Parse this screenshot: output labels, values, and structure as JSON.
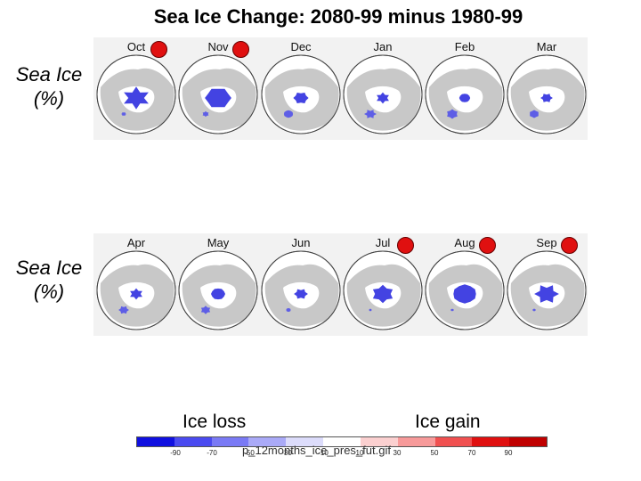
{
  "title": "Sea Ice Change: 2080-99 minus 1980-99",
  "rows": [
    {
      "label_line1": "Sea Ice",
      "label_line2": "(%)",
      "months": [
        {
          "name": "Oct",
          "highlight": true
        },
        {
          "name": "Nov",
          "highlight": true
        },
        {
          "name": "Dec",
          "highlight": false
        },
        {
          "name": "Jan",
          "highlight": false
        },
        {
          "name": "Feb",
          "highlight": false
        },
        {
          "name": "Mar",
          "highlight": false
        }
      ]
    },
    {
      "label_line1": "Sea Ice",
      "label_line2": "(%)",
      "months": [
        {
          "name": "Apr",
          "highlight": false
        },
        {
          "name": "May",
          "highlight": false
        },
        {
          "name": "Jun",
          "highlight": false
        },
        {
          "name": "Jul",
          "highlight": true
        },
        {
          "name": "Aug",
          "highlight": true
        },
        {
          "name": "Sep",
          "highlight": true
        }
      ]
    }
  ],
  "legend": {
    "loss_label": "Ice loss",
    "gain_label": "Ice gain",
    "ticks": [
      "-90",
      "-70",
      "-50",
      "-30",
      "-10",
      "10",
      "30",
      "50",
      "70",
      "90"
    ],
    "colors": [
      "#1010e0",
      "#4a4af0",
      "#7a7af5",
      "#aaaaf8",
      "#dcdcfb",
      "#ffffff",
      "#fbd0d0",
      "#f79a9a",
      "#f05050",
      "#e01010",
      "#c00000"
    ],
    "filename": "p_12months_ice_pres_fut.gif"
  }
}
